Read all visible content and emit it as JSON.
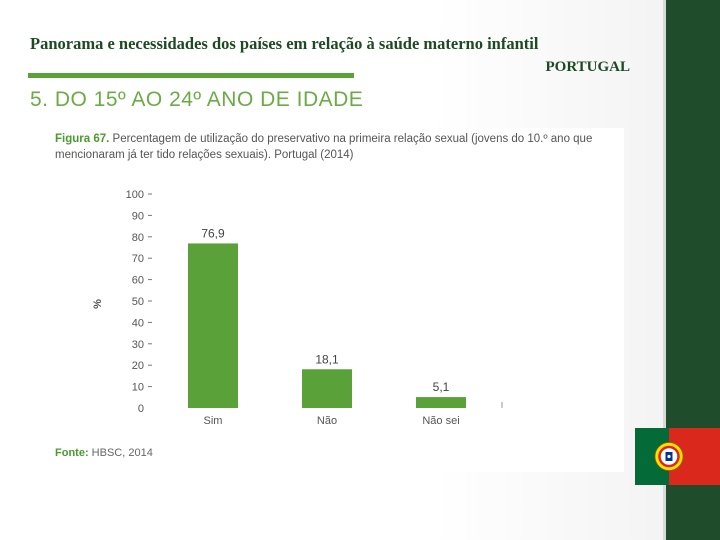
{
  "slide": {
    "title": "Panorama e necessidades dos países em relação à saúde materno infantil",
    "country": "PORTUGAL",
    "section_heading": "5. DO 15º AO 24º ANO DE IDADE"
  },
  "figure": {
    "label": "Figura 67.",
    "caption": "Percentagem de utilização do preservativo na primeira relação sexual (jovens do 10.º ano que mencionaram já ter tido relações sexuais). Portugal (2014)",
    "source_label": "Fonte:",
    "source_text": "HBSC, 2014"
  },
  "chart_data": {
    "type": "bar",
    "categories": [
      "Sim",
      "Não",
      "Não sei"
    ],
    "values": [
      76.9,
      18.1,
      5.1
    ],
    "value_labels": [
      "76,9",
      "18,1",
      "5,1"
    ],
    "title": "",
    "xlabel": "",
    "ylabel": "%",
    "ylim": [
      0,
      100
    ],
    "yticks": [
      0,
      10,
      20,
      30,
      40,
      50,
      60,
      70,
      80,
      90,
      100
    ],
    "bar_color": "#5aa13a",
    "grid": false
  },
  "colors": {
    "accent_green": "#5aa13a",
    "dark_green": "#1f4d2b",
    "flag_green": "#046a38",
    "flag_red": "#da291c"
  },
  "icons": {
    "flag": "portugal-flag-icon"
  }
}
